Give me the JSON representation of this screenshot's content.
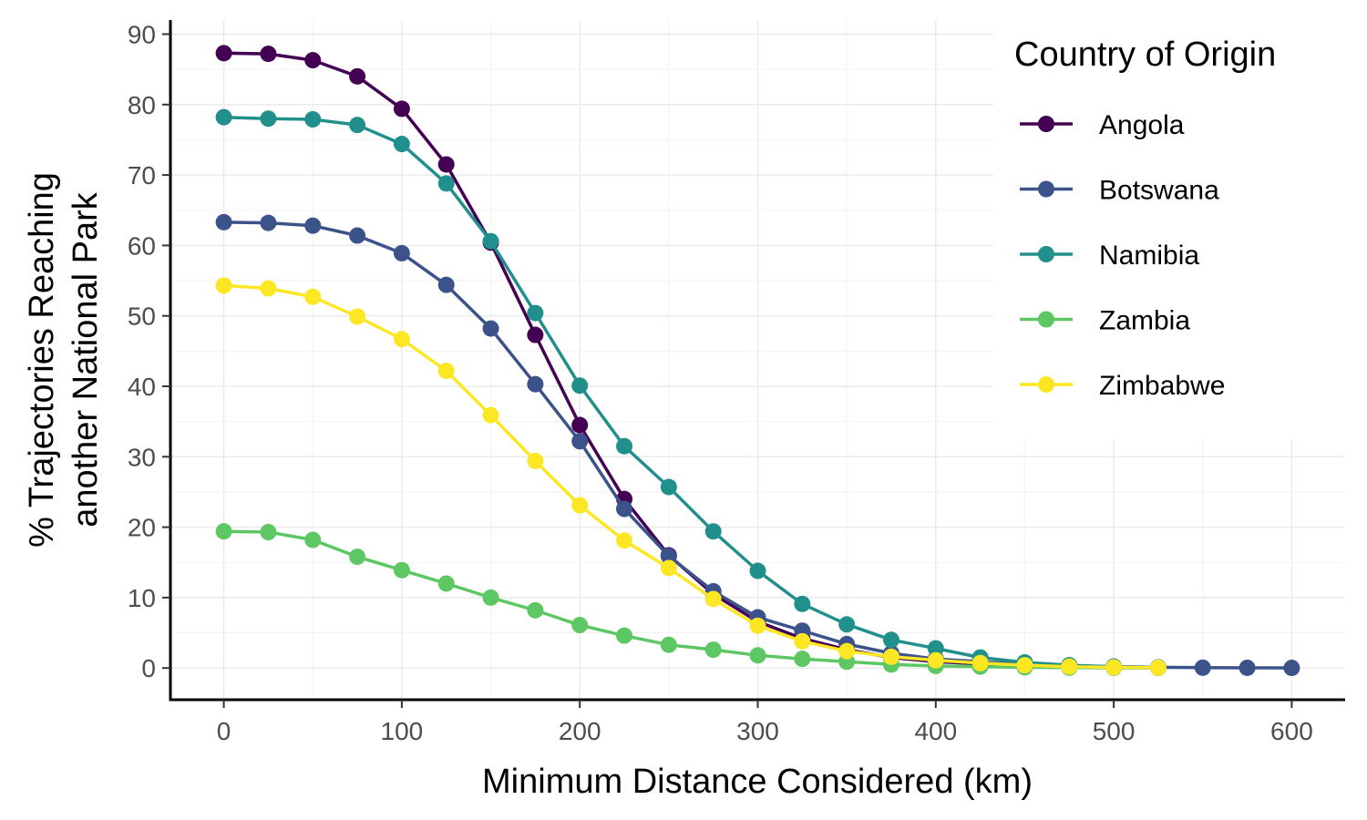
{
  "chart_data": {
    "type": "line",
    "xlabel": "Minimum Distance Considered (km)",
    "ylabel_lines": [
      "% Trajectories Reaching",
      "another National Park"
    ],
    "xlim": [
      -30,
      630
    ],
    "ylim": [
      -4.5,
      92
    ],
    "x_ticks": [
      0,
      100,
      200,
      300,
      400,
      500,
      600
    ],
    "y_ticks": [
      0,
      10,
      20,
      30,
      40,
      50,
      60,
      70,
      80,
      90
    ],
    "grid": true,
    "legend": {
      "title": "Country of Origin",
      "placement": "top-right"
    },
    "series": [
      {
        "name": "Angola",
        "color": "#440154",
        "x": [
          0,
          25,
          50,
          75,
          100,
          125,
          150,
          175,
          200,
          225,
          250,
          275,
          300,
          325,
          350,
          375,
          400,
          425,
          450,
          475,
          500,
          525
        ],
        "y": [
          87.3,
          87.2,
          86.3,
          84.0,
          79.4,
          71.5,
          60.4,
          47.3,
          34.5,
          24.0,
          16.0,
          10.5,
          6.6,
          4.2,
          2.6,
          1.5,
          0.9,
          0.6,
          0.4,
          0.2,
          0.1,
          0.05
        ]
      },
      {
        "name": "Botswana",
        "color": "#3B528B",
        "x": [
          0,
          25,
          50,
          75,
          100,
          125,
          150,
          175,
          200,
          225,
          250,
          275,
          300,
          325,
          350,
          375,
          400,
          425,
          450,
          475,
          500,
          525,
          550,
          575,
          600
        ],
        "y": [
          63.3,
          63.2,
          62.8,
          61.4,
          58.9,
          54.4,
          48.2,
          40.3,
          32.2,
          22.6,
          15.9,
          10.9,
          7.2,
          5.3,
          3.4,
          2.1,
          1.3,
          0.9,
          0.5,
          0.3,
          0.2,
          0.1,
          0.05,
          0.03,
          0.02
        ]
      },
      {
        "name": "Namibia",
        "color": "#21908C",
        "x": [
          0,
          25,
          50,
          75,
          100,
          125,
          150,
          175,
          200,
          225,
          250,
          275,
          300,
          325,
          350,
          375,
          400,
          425,
          450,
          475,
          500,
          525
        ],
        "y": [
          78.2,
          78.0,
          77.9,
          77.1,
          74.4,
          68.8,
          60.6,
          50.4,
          40.1,
          31.5,
          25.7,
          19.4,
          13.8,
          9.1,
          6.2,
          4.0,
          2.8,
          1.5,
          0.8,
          0.4,
          0.2,
          0.1
        ]
      },
      {
        "name": "Zambia",
        "color": "#5DC863",
        "x": [
          0,
          25,
          50,
          75,
          100,
          125,
          150,
          175,
          200,
          225,
          250,
          275,
          300,
          325,
          350,
          375,
          400,
          425,
          450,
          475,
          500,
          525
        ],
        "y": [
          19.4,
          19.3,
          18.2,
          15.8,
          13.9,
          12.0,
          10.0,
          8.2,
          6.1,
          4.6,
          3.3,
          2.6,
          1.8,
          1.3,
          0.9,
          0.5,
          0.3,
          0.2,
          0.1,
          0.05,
          0.03,
          0.02
        ]
      },
      {
        "name": "Zimbabwe",
        "color": "#FDE725",
        "x": [
          0,
          25,
          50,
          75,
          100,
          125,
          150,
          175,
          200,
          225,
          250,
          275,
          300,
          325,
          350,
          375,
          400,
          425,
          450,
          475,
          500,
          525
        ],
        "y": [
          54.3,
          53.9,
          52.7,
          49.9,
          46.7,
          42.2,
          35.9,
          29.4,
          23.1,
          18.1,
          14.2,
          9.8,
          6.0,
          3.8,
          2.4,
          1.6,
          1.1,
          0.7,
          0.4,
          0.2,
          0.1,
          0.05
        ]
      }
    ]
  }
}
